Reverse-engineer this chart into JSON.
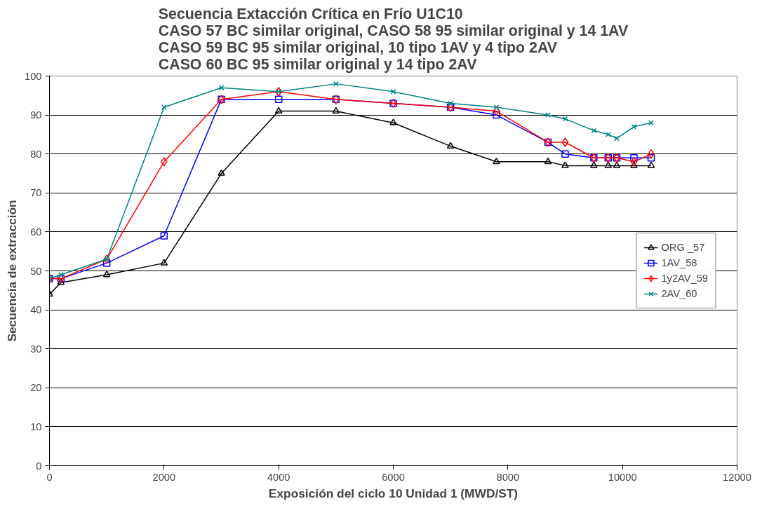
{
  "chart_data": {
    "type": "line",
    "title": "Secuencia Extacción Crítica en Frío U1C10\nCASO 57 BC similar original, CASO 58 95 similar original y 14 1AV\nCASO 59 BC 95 similar original, 10 tipo 1AV y 4 tipo 2AV\nCASO 60 BC 95 similar original y 14 tipo 2AV",
    "xlabel": "Exposición del ciclo 10 Unidad 1 (MWD/ST)",
    "ylabel": "Secuencia de extracción",
    "x": [
      0,
      200,
      1000,
      2000,
      3000,
      4000,
      5000,
      6000,
      7000,
      7800,
      8700,
      9000,
      9500,
      9750,
      9900,
      10200,
      10500
    ],
    "series": [
      {
        "name": "ORG _57",
        "color": "#000000",
        "marker": "triangle",
        "values": [
          44,
          47,
          49,
          52,
          75,
          91,
          91,
          88,
          82,
          78,
          78,
          77,
          77,
          77,
          77,
          77,
          77
        ]
      },
      {
        "name": "1AV_58",
        "color": "#0000ff",
        "marker": "square",
        "values": [
          48,
          48,
          52,
          59,
          94,
          94,
          94,
          93,
          92,
          90,
          83,
          80,
          79,
          79,
          79,
          79,
          79
        ]
      },
      {
        "name": "1y2AV_59",
        "color": "#ff0000",
        "marker": "diamond",
        "values": [
          48,
          48,
          53,
          78,
          94,
          96,
          94,
          93,
          92,
          91,
          83,
          83,
          79,
          79,
          79,
          78,
          80
        ]
      },
      {
        "name": "2AV_60",
        "color": "#008080",
        "marker": "cross",
        "values": [
          48,
          49,
          53,
          92,
          97,
          96,
          98,
          96,
          93,
          92,
          90,
          89,
          86,
          85,
          84,
          87,
          88
        ]
      }
    ],
    "xlim": [
      0,
      12000
    ],
    "xticks": [
      0,
      2000,
      4000,
      6000,
      8000,
      10000,
      12000
    ],
    "ylim": [
      0,
      100
    ],
    "yticks": [
      0,
      10,
      20,
      30,
      40,
      50,
      60,
      70,
      80,
      90,
      100
    ],
    "grid": "y",
    "legend": "right",
    "line_style": "solid"
  }
}
